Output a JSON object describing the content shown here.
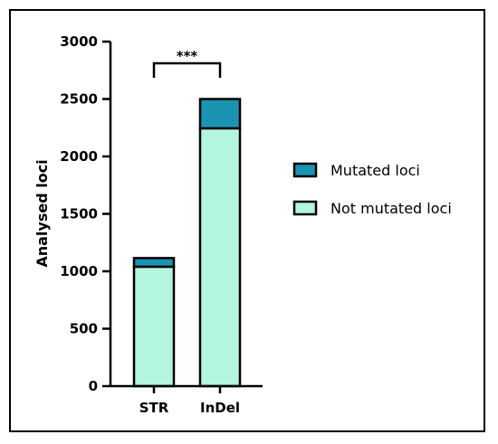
{
  "chart_data": {
    "type": "bar",
    "stacked": true,
    "categories": [
      "STR",
      "InDel"
    ],
    "series": [
      {
        "name": "Not mutated loci",
        "values": [
          1040,
          2245
        ],
        "color": "#b3f5de"
      },
      {
        "name": "Mutated loci",
        "values": [
          75,
          255
        ],
        "color": "#1b93b3"
      }
    ],
    "ylabel": "Analysed loci",
    "xlabel": "",
    "ylim": [
      0,
      3000
    ],
    "yticks": [
      0,
      500,
      1000,
      1500,
      2000,
      2500,
      3000
    ],
    "significance": {
      "label": "***",
      "between": [
        "STR",
        "InDel"
      ]
    },
    "legend": {
      "placement": "right",
      "order": [
        "Mutated loci",
        "Not mutated loci"
      ]
    },
    "grid": false
  }
}
